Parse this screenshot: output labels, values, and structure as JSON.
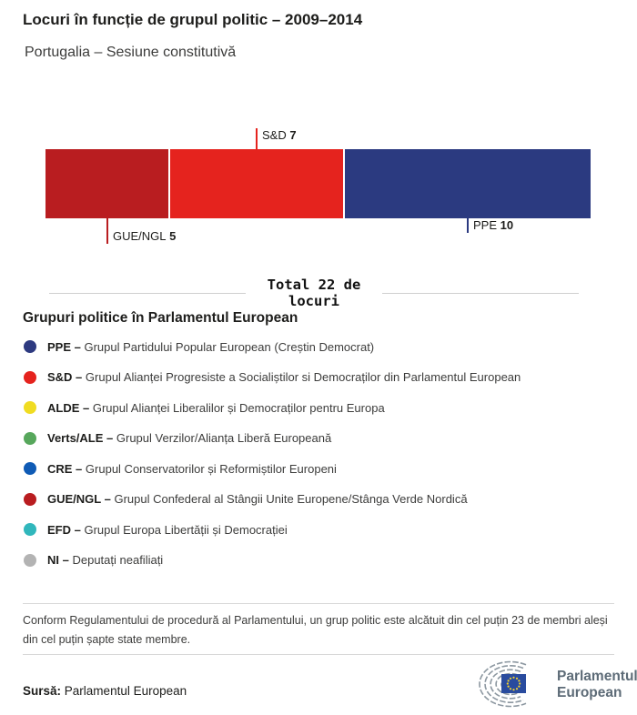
{
  "header": {
    "title": "Locuri în funcție de grupul politic – 2009–2014",
    "subtitle": "Portugalia – Sesiune constitutivă"
  },
  "chart_data": {
    "type": "bar",
    "subtype": "stacked-horizontal",
    "title": "Locuri în funcție de grupul politic – 2009–2014",
    "subtitle": "Portugalia – Sesiune constitutivă",
    "total": 22,
    "total_label": "Total 22 de locuri",
    "unit": "locuri",
    "series": [
      {
        "name": "GUE/NGL",
        "value": 5,
        "color": "#b91d20",
        "label_position": "below"
      },
      {
        "name": "S&D",
        "value": 7,
        "color": "#e5231e",
        "label_position": "above"
      },
      {
        "name": "PPE",
        "value": 10,
        "color": "#2b3a80",
        "label_position": "below"
      }
    ],
    "legend_position": "bottom",
    "grid": false
  },
  "legend": {
    "title": "Grupuri politice în Parlamentul European",
    "items": [
      {
        "abbr": "PPE –",
        "description": "Grupul Partidului Popular European (Creștin Democrat)",
        "color": "#2d3a80"
      },
      {
        "abbr": "S&D –",
        "description": "Grupul Alianței Progresiste a Socialiștilor si Democraților din Parlamentul European",
        "color": "#e5231e"
      },
      {
        "abbr": "ALDE –",
        "description": "Grupul Alianței Liberalilor și Democraților pentru Europa",
        "color": "#f0dc22"
      },
      {
        "abbr": "Verts/ALE –",
        "description": "Grupul Verzilor/Alianța Liberă Europeană",
        "color": "#57a75c"
      },
      {
        "abbr": "CRE –",
        "description": "Grupul Conservatorilor și Reformiștilor Europeni",
        "color": "#0f5bb5"
      },
      {
        "abbr": "GUE/NGL –",
        "description": "Grupul Confederal al Stângii Unite Europene/Stânga Verde Nordică",
        "color": "#b91d20"
      },
      {
        "abbr": "EFD –",
        "description": "Grupul Europa Libertății și Democrației",
        "color": "#31b7bc"
      },
      {
        "abbr": "NI –",
        "description": "Deputați neafiliați",
        "color": "#b3b3b3"
      }
    ]
  },
  "footnote": "Conform Regulamentului de procedură al Parlamentului, un grup politic este alcătuit din cel puțin 23 de membri aleși din cel puțin șapte state membre.",
  "source": {
    "label": "Sursă:",
    "value": "Parlamentul European"
  },
  "logo": {
    "line1": "Parlamentul",
    "line2": "European",
    "flag_color": "#294b9e",
    "star_color": "#f6d32d",
    "arc_color": "#8d98a1",
    "text_color": "#5d6b77"
  }
}
